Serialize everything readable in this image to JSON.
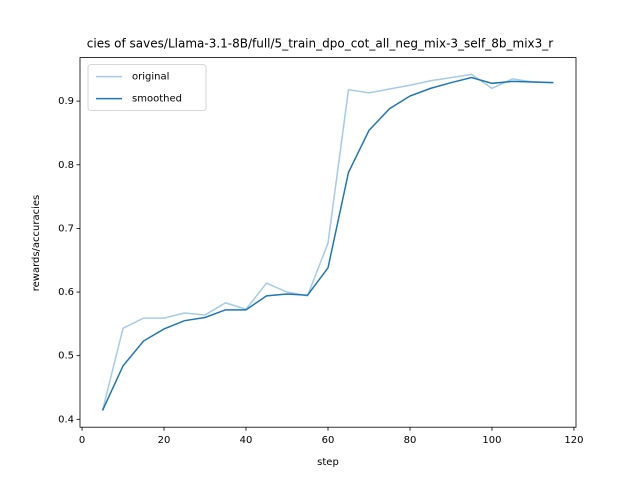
{
  "chart_data": {
    "type": "line",
    "title": "cies of saves/Llama-3.1-8B/full/5_train_dpo_cot_all_neg_mix-3_self_8b_mix3_r",
    "x_label": "step",
    "y_label": "rewards/accuracies",
    "x": [
      5,
      10,
      15,
      20,
      25,
      30,
      35,
      40,
      45,
      50,
      55,
      60,
      65,
      70,
      75,
      80,
      85,
      90,
      95,
      100,
      105,
      110,
      115
    ],
    "series": [
      {
        "name": "original",
        "color": "#a6cbe5",
        "values": [
          0.414,
          0.543,
          0.559,
          0.559,
          0.567,
          0.564,
          0.583,
          0.573,
          0.614,
          0.6,
          0.594,
          0.677,
          0.918,
          0.913,
          0.919,
          0.925,
          0.932,
          0.937,
          0.942,
          0.92,
          0.935,
          0.93,
          0.929
        ]
      },
      {
        "name": "smoothed",
        "color": "#1f77b4",
        "values": [
          0.414,
          0.484,
          0.523,
          0.542,
          0.555,
          0.56,
          0.572,
          0.572,
          0.594,
          0.597,
          0.595,
          0.638,
          0.788,
          0.854,
          0.888,
          0.908,
          0.92,
          0.929,
          0.937,
          0.928,
          0.931,
          0.93,
          0.929
        ]
      }
    ],
    "xlim": [
      -0.5,
      120.5
    ],
    "xticks": [
      0,
      20,
      40,
      60,
      80,
      100,
      120
    ],
    "ylim": [
      0.3876,
      0.9684
    ],
    "yticks": [
      0.4,
      0.5,
      0.6,
      0.7,
      0.8,
      0.9
    ],
    "grid": false,
    "legend": "upper-left"
  }
}
